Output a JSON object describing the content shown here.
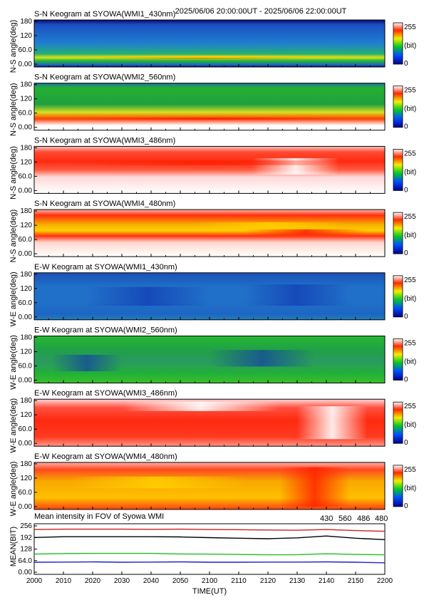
{
  "header_time_range": "2025/06/06 20:00:00UT - 2025/06/06 22:00:00UT",
  "colorbar": {
    "max_label": "255",
    "unit_label": "(bit)",
    "min_label": "0"
  },
  "keograms": [
    {
      "title": "S-N Keogram at SYOWA(WMI1_430nm)",
      "ylabel": "N-S angle(deg)",
      "yticks": [
        "180",
        "120",
        "60.0",
        "0.00"
      ],
      "profile": "n430"
    },
    {
      "title": "S-N Keogram at SYOWA(WMI2_560nm)",
      "ylabel": "N-S angle(deg)",
      "yticks": [
        "180",
        "120",
        "60.0",
        "0.00"
      ],
      "profile": "n560"
    },
    {
      "title": "S-N Keogram at SYOWA(WMI3_486nm)",
      "ylabel": "N-S angle(deg)",
      "yticks": [
        "180",
        "120",
        "60.0",
        "0.00"
      ],
      "profile": "n486"
    },
    {
      "title": "S-N Keogram at SYOWA(WMI4_480nm)",
      "ylabel": "N-S angle(deg)",
      "yticks": [
        "180",
        "120",
        "60.0",
        "0.00"
      ],
      "profile": "n480"
    },
    {
      "title": "E-W Keogram at SYOWA(WMI1_430nm)",
      "ylabel": "W-E angle(deg)",
      "yticks": [
        "180",
        "120",
        "60.0",
        "0.00"
      ],
      "profile": "e430"
    },
    {
      "title": "E-W Keogram at SYOWA(WMI2_560nm)",
      "ylabel": "W-E angle(deg)",
      "yticks": [
        "180",
        "120",
        "60.0",
        "0.00"
      ],
      "profile": "e560"
    },
    {
      "title": "E-W Keogram at SYOWA(WMI3_486nm)",
      "ylabel": "W-E angle(deg)",
      "yticks": [
        "180",
        "120",
        "60.0",
        "0.00"
      ],
      "profile": "e486"
    },
    {
      "title": "E-W Keogram at SYOWA(WMI4_480nm)",
      "ylabel": "W-E angle(deg)",
      "yticks": [
        "180",
        "120",
        "60.0",
        "0.00"
      ],
      "profile": "e480"
    }
  ],
  "chart_data": {
    "type": "line",
    "title": "Mean intensity in FOV of Syowa WMI",
    "xlabel": "TIME(UT)",
    "ylabel": "MEAN(BIT)",
    "x_ticks": [
      "2000",
      "2010",
      "2020",
      "2030",
      "2040",
      "2050",
      "2100",
      "2110",
      "2120",
      "2130",
      "2140",
      "2150",
      "2200"
    ],
    "y_ticks": [
      "256",
      "192",
      "128",
      "64.0",
      "0.00"
    ],
    "ylim": [
      0,
      256
    ],
    "x": [
      "2000",
      "2010",
      "2020",
      "2030",
      "2040",
      "2050",
      "2100",
      "2110",
      "2120",
      "2130",
      "2140",
      "2150",
      "2200"
    ],
    "series": [
      {
        "name": "430",
        "color": "#1f1fd0",
        "values": [
          55,
          56,
          57,
          55,
          56,
          57,
          55,
          55,
          56,
          56,
          57,
          55,
          52
        ]
      },
      {
        "name": "560",
        "color": "#22bb22",
        "values": [
          100,
          103,
          104,
          104,
          104,
          101,
          100,
          98,
          96,
          97,
          102,
          98,
          96
        ]
      },
      {
        "name": "486",
        "color": "#cc1f1f",
        "values": [
          236,
          238,
          238,
          238,
          237,
          238,
          236,
          235,
          233,
          232,
          236,
          230,
          226
        ]
      },
      {
        "name": "480",
        "color": "#000000",
        "values": [
          192,
          196,
          196,
          196,
          196,
          195,
          191,
          188,
          185,
          190,
          200,
          188,
          180
        ]
      }
    ]
  }
}
